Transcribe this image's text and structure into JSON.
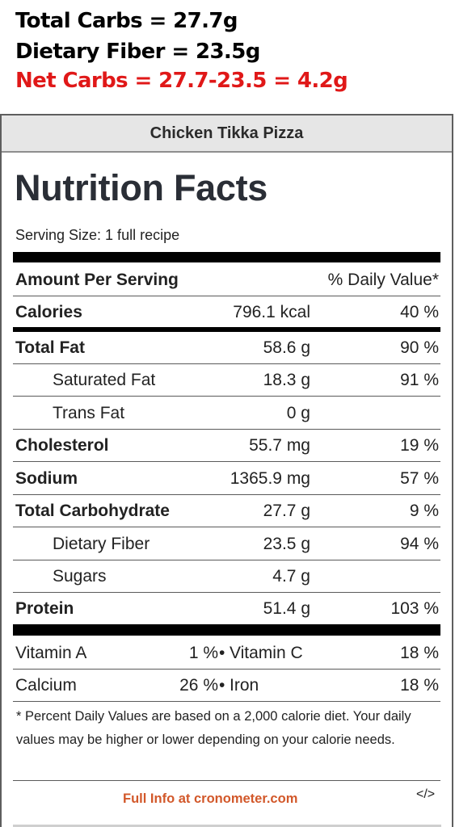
{
  "annotation": {
    "line1": "Total Carbs = 27.7g",
    "line2": "Dietary Fiber = 23.5g",
    "line3": "Net Carbs = 27.7-23.5 = 4.2g",
    "line3_color": "#e01818"
  },
  "card": {
    "title": "Chicken Tikka Pizza",
    "heading": "Nutrition Facts",
    "serving": "Serving Size: 1 full recipe",
    "amount_header": "Amount Per Serving",
    "dv_header": "% Daily Value*"
  },
  "nutrients": [
    {
      "label": "Calories",
      "qty": "796.1 kcal",
      "dv": "40 %"
    },
    {
      "label": "Total Fat",
      "qty": "58.6 g",
      "dv": "90 %"
    },
    {
      "label": "Saturated Fat",
      "qty": "18.3 g",
      "dv": "91 %"
    },
    {
      "label": "Trans Fat",
      "qty": "0 g",
      "dv": ""
    },
    {
      "label": "Cholesterol",
      "qty": "55.7 mg",
      "dv": "19 %"
    },
    {
      "label": "Sodium",
      "qty": "1365.9 mg",
      "dv": "57 %"
    },
    {
      "label": "Total Carbohydrate",
      "qty": "27.7 g",
      "dv": "9 %"
    },
    {
      "label": "Dietary Fiber",
      "qty": "23.5 g",
      "dv": "94 %"
    },
    {
      "label": "Sugars",
      "qty": "4.7 g",
      "dv": ""
    },
    {
      "label": "Protein",
      "qty": "51.4 g",
      "dv": "103 %"
    }
  ],
  "vitamins": [
    {
      "left_label": "Vitamin A",
      "left_value": "1 %",
      "right_label": "Vitamin C",
      "right_value": "18 %"
    },
    {
      "left_label": "Calcium",
      "left_value": "26 %",
      "right_label": "Iron",
      "right_value": "18 %"
    }
  ],
  "footnote": "* Percent Daily Values are based on a 2,000 calorie diet. Your daily values may be higher or lower depending on your calorie needs.",
  "credit": "Full Info at cronometer.com",
  "credit_color": "#d2582a",
  "embed_icon": "</>"
}
